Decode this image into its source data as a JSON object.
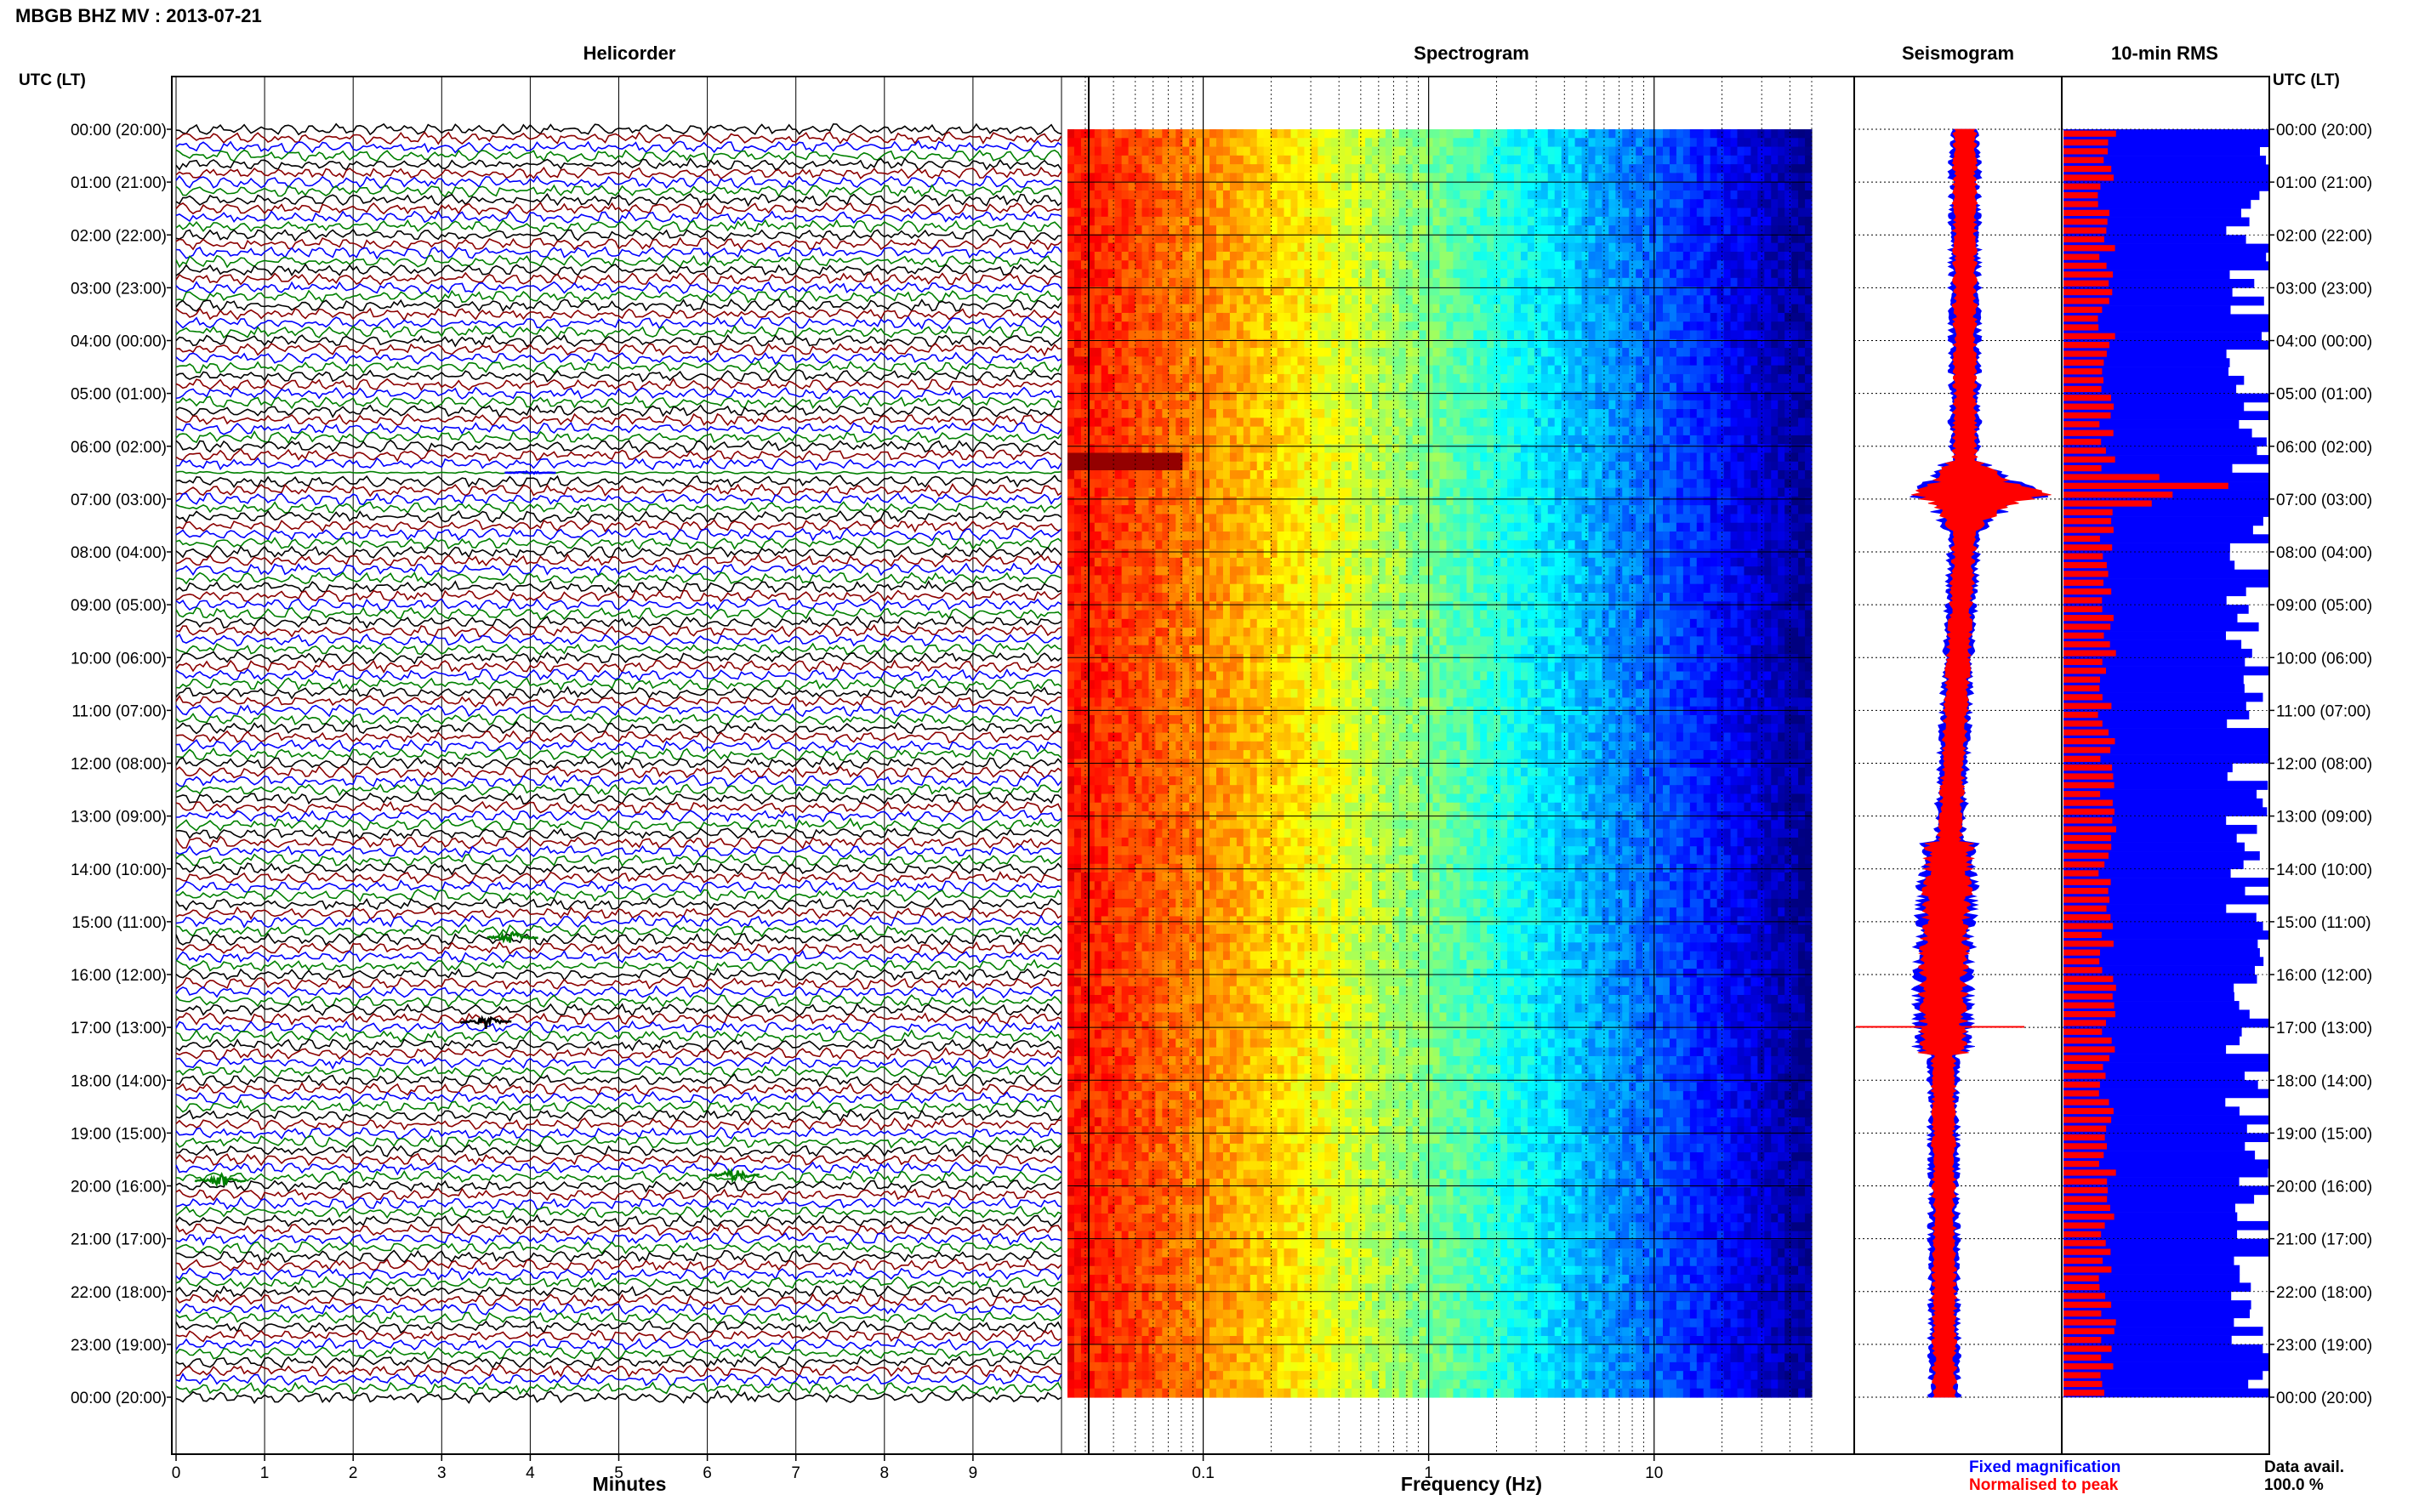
{
  "title": "MBGB BHZ MV : 2013-07-21",
  "colors": {
    "helicorder_lines": [
      "#000000",
      "#8b0000",
      "#0000ff",
      "#008000"
    ],
    "fixed": "#0000ff",
    "normalised": "#ff0000",
    "grid": "#000000"
  },
  "chart_data": [
    {
      "type": "line",
      "title": "Helicorder",
      "xlabel": "Minutes",
      "ylabel": "UTC (LT)",
      "xlim": [
        0,
        10
      ],
      "x_ticks": [
        "0",
        "1",
        "2",
        "3",
        "4",
        "5",
        "6",
        "7",
        "8",
        "9"
      ],
      "y_ticks": [
        "00:00 (20:00)",
        "01:00 (21:00)",
        "02:00 (22:00)",
        "03:00 (23:00)",
        "04:00 (00:00)",
        "05:00 (01:00)",
        "06:00 (02:00)",
        "07:00 (03:00)",
        "08:00 (04:00)",
        "09:00 (05:00)",
        "10:00 (06:00)",
        "11:00 (07:00)",
        "12:00 (08:00)",
        "13:00 (09:00)",
        "14:00 (10:00)",
        "15:00 (11:00)",
        "16:00 (12:00)",
        "17:00 (13:00)",
        "18:00 (14:00)",
        "19:00 (15:00)",
        "20:00 (16:00)",
        "21:00 (17:00)",
        "22:00 (18:00)",
        "23:00 (19:00)",
        "00:00 (20:00)"
      ],
      "traces_per_hour": 6,
      "events": [
        {
          "hour": 6.5,
          "minute": 4.0,
          "desc": "quiet-trace"
        },
        {
          "hour": 15.3,
          "minute": 3.8,
          "desc": "event"
        },
        {
          "hour": 16.9,
          "minute": 3.5,
          "desc": "event"
        },
        {
          "hour": 19.9,
          "minute": 0.5,
          "desc": "event"
        },
        {
          "hour": 19.8,
          "minute": 6.3,
          "desc": "event"
        }
      ]
    },
    {
      "type": "heatmap",
      "title": "Spectrogram",
      "xlabel": "Frequency (Hz)",
      "xscale": "log",
      "xlim": [
        0.025,
        50
      ],
      "x_ticks": [
        "0.1",
        "1",
        "10"
      ],
      "colormap": "jet"
    },
    {
      "type": "line",
      "title": "Seismogram",
      "legend": [
        "Fixed magnification",
        "Normalised to peak"
      ],
      "peak_hour": 6.9
    },
    {
      "type": "bar",
      "title": "10-min RMS",
      "footer": "Data avail.",
      "data_available": "100.0 %",
      "peak_hour": 6.7
    }
  ],
  "right_axis_label": "UTC (LT)"
}
